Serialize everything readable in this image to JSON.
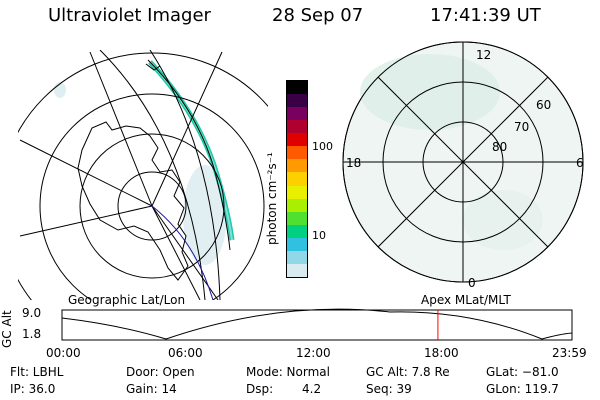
{
  "header": {
    "instrument": "Ultraviolet Imager",
    "date": "28 Sep 07",
    "time": "17:41:39 UT"
  },
  "colorbar": {
    "unit_label": "photon cm⁻²s⁻¹",
    "ticks": [
      "100",
      "10"
    ],
    "colors": [
      "#000000",
      "#3a0046",
      "#7a0060",
      "#b00030",
      "#e00000",
      "#ff5a00",
      "#ff9a00",
      "#ffd000",
      "#e8f000",
      "#a8f000",
      "#50e030",
      "#00d080",
      "#30c0e0",
      "#90d8e8",
      "#d8ecf0"
    ]
  },
  "left_map": {
    "label": "Geographic Lat/Lon"
  },
  "right_polar": {
    "label": "Apex MLat/MLT",
    "mlt_labels": {
      "top": "12",
      "left": "18",
      "right": "6",
      "bottom": "0"
    },
    "lat_labels": [
      "60",
      "70",
      "80"
    ]
  },
  "timeline": {
    "y_axis_label": "GC Alt",
    "y_ticks": [
      "9.0",
      "1.8"
    ],
    "x_ticks": [
      "00:00",
      "06:00",
      "12:00",
      "18:00",
      "23:59"
    ],
    "current_time_hours": 17.69,
    "marker_color": "#ff0000"
  },
  "info": {
    "filter": "Flt: LBHL",
    "ip": "IP: 36.0",
    "door": "Door: Open",
    "gain": "Gain: 14",
    "mode": "Mode: Normal",
    "dsp_label": "Dsp:",
    "dsp_value": "4.2",
    "gc_alt": "GC Alt: 7.8 Re",
    "seq": "Seq: 39",
    "glat": "GLat: −81.0",
    "glon": "GLon: 119.7"
  }
}
